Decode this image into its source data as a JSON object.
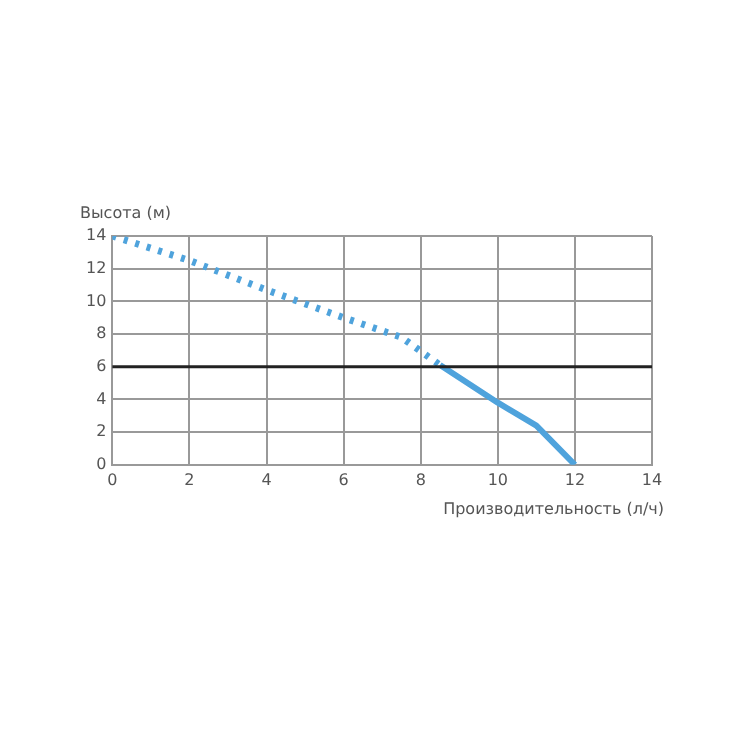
{
  "chart_data": {
    "type": "line",
    "xlabel": "Производительность (л/ч)",
    "ylabel": "Высота (м)",
    "xlim": [
      0,
      14
    ],
    "xticks": [
      0,
      2,
      4,
      6,
      8,
      10,
      12,
      14
    ],
    "ylim": [
      0,
      14
    ],
    "yticks": [
      0,
      2,
      4,
      6,
      8,
      10,
      12,
      14
    ],
    "grid": true,
    "marker": "none",
    "series": [
      {
        "color": "#4fa3dc",
        "line_style": "dotted",
        "x": [
          0,
          2,
          4,
          6,
          7.5,
          8.5
        ],
        "values": [
          14,
          12.5,
          10.7,
          9,
          7.8,
          6.1
        ]
      },
      {
        "color": "#4fa3dc",
        "line_style": "solid",
        "x": [
          8.5,
          10,
          11,
          12
        ],
        "values": [
          6.1,
          3.8,
          2.4,
          0
        ]
      }
    ],
    "ref_lines": [
      {
        "axis": "y",
        "value": 6,
        "color": "#222222"
      }
    ]
  }
}
